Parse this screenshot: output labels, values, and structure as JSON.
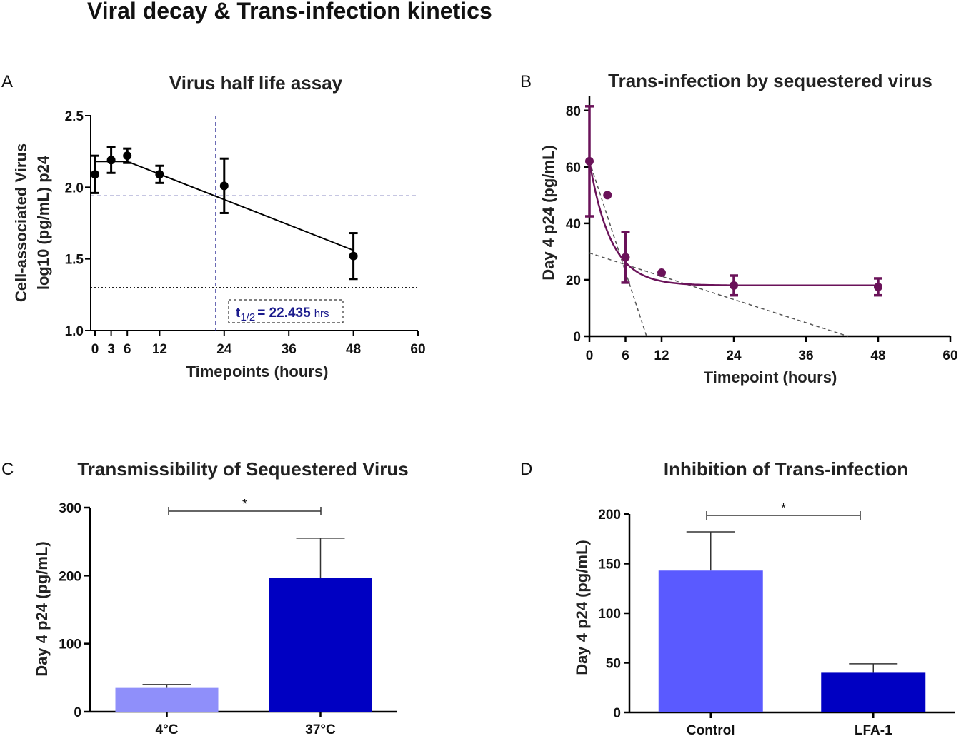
{
  "figure_title": "Viral decay & Trans-infection kinetics",
  "chart_data": [
    {
      "panel": "A",
      "type": "line",
      "title": "Virus half life assay",
      "xlabel": "Timepoints (hours)",
      "ylabel_line1": "Cell-associated Virus",
      "ylabel_line2": "log10 (pg/mL) p24",
      "xlim": [
        0,
        60
      ],
      "ylim": [
        1.0,
        2.5
      ],
      "xticks": [
        0,
        3,
        6,
        12,
        24,
        36,
        48,
        60
      ],
      "yticks": [
        "1.0",
        "1.5",
        "2.0",
        "2.5"
      ],
      "series": [
        {
          "name": "p24",
          "color": "#000000",
          "x": [
            0,
            3,
            6,
            12,
            24,
            48
          ],
          "y": [
            2.09,
            2.19,
            2.22,
            2.09,
            2.01,
            1.52
          ],
          "err": [
            0.13,
            0.09,
            0.05,
            0.06,
            0.19,
            0.16
          ]
        }
      ],
      "fit": {
        "plateau_x": [
          0,
          6
        ],
        "plateau_y": 2.18,
        "end": [
          48,
          1.56
        ]
      },
      "ref_lines": {
        "half_life_x": 22.435,
        "half_life_y": 1.94,
        "lod_y": 1.3
      },
      "half_life_label": {
        "prefix": "t",
        "sub": "1/2",
        "value": "= 22.435",
        "unit": "hrs"
      }
    },
    {
      "panel": "B",
      "type": "scatter",
      "title": "Trans-infection by sequestered virus",
      "xlabel": "Timepoint (hours)",
      "ylabel": "Day 4 p24 (pg/mL)",
      "xlim": [
        0,
        60
      ],
      "ylim": [
        0,
        85
      ],
      "xticks": [
        0,
        6,
        12,
        24,
        36,
        48,
        60
      ],
      "yticks": [
        0,
        20,
        40,
        60,
        80
      ],
      "series": [
        {
          "name": "p24",
          "color": "#6a1259",
          "x": [
            0,
            3,
            6,
            12,
            24,
            48
          ],
          "y": [
            62,
            50,
            28,
            22.5,
            18,
            17.5
          ],
          "err": [
            19.5,
            0,
            9,
            0,
            3.5,
            3
          ]
        }
      ],
      "fit": {
        "type": "exponential decay",
        "plateau": 18,
        "y0": 62,
        "k": 0.28
      },
      "asymptotes": [
        {
          "from": [
            0,
            62
          ],
          "to": [
            9.5,
            0
          ]
        },
        {
          "from": [
            0,
            29.5
          ],
          "to": [
            43,
            0
          ]
        }
      ]
    },
    {
      "panel": "C",
      "type": "bar",
      "title": "Transmissibility of Sequestered Virus",
      "xlabel": "",
      "ylabel": "Day 4 p24 (pg/mL)",
      "ylim": [
        0,
        300
      ],
      "yticks": [
        0,
        100,
        200,
        300
      ],
      "categories": [
        "4°C",
        "37°C"
      ],
      "values": [
        35,
        197
      ],
      "err": [
        5,
        58
      ],
      "colors": [
        "#8f8ffa",
        "#0000c2"
      ],
      "significance": "*"
    },
    {
      "panel": "D",
      "type": "bar",
      "title": "Inhibition of Trans-infection",
      "xlabel": "",
      "ylabel": "Day 4 p24 (pg/mL)",
      "ylim": [
        0,
        200
      ],
      "yticks": [
        0,
        50,
        100,
        150,
        200
      ],
      "categories": [
        "Control",
        "LFA-1"
      ],
      "values": [
        143,
        40
      ],
      "err": [
        39,
        9
      ],
      "colors": [
        "#5a5aff",
        "#0000c2"
      ],
      "significance": "*"
    }
  ]
}
